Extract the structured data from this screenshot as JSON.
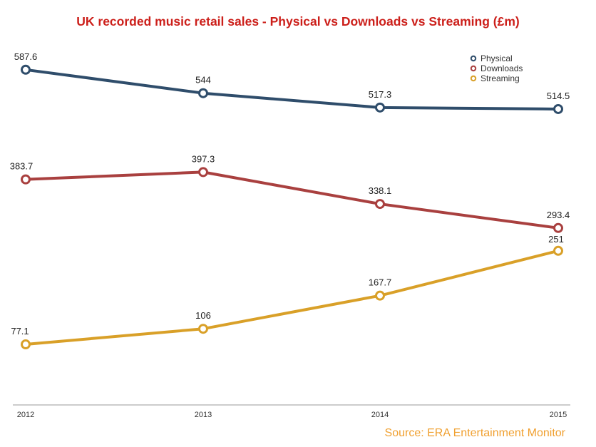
{
  "chart_data": {
    "type": "line",
    "title": "UK recorded music retail sales - Physical vs Downloads vs Streaming (£m)",
    "x": [
      "2012",
      "2013",
      "2014",
      "2015"
    ],
    "series": [
      {
        "name": "Physical",
        "color": "#2f4d6b",
        "values": [
          587.6,
          544,
          517.3,
          514.5
        ],
        "labels": [
          "587.6",
          "544",
          "517.3",
          "514.5"
        ]
      },
      {
        "name": "Downloads",
        "color": "#a9403f",
        "values": [
          383.7,
          397.3,
          338.1,
          293.4
        ],
        "labels": [
          "383.7",
          "397.3",
          "338.1",
          "293.4"
        ]
      },
      {
        "name": "Streaming",
        "color": "#d9a028",
        "values": [
          77.1,
          106,
          167.7,
          251
        ],
        "labels": [
          "77.1",
          "106",
          "167.7",
          "251"
        ]
      }
    ],
    "legend_position": "top-right",
    "grid": false,
    "source": "Source: ERA Entertainment Monitor"
  }
}
